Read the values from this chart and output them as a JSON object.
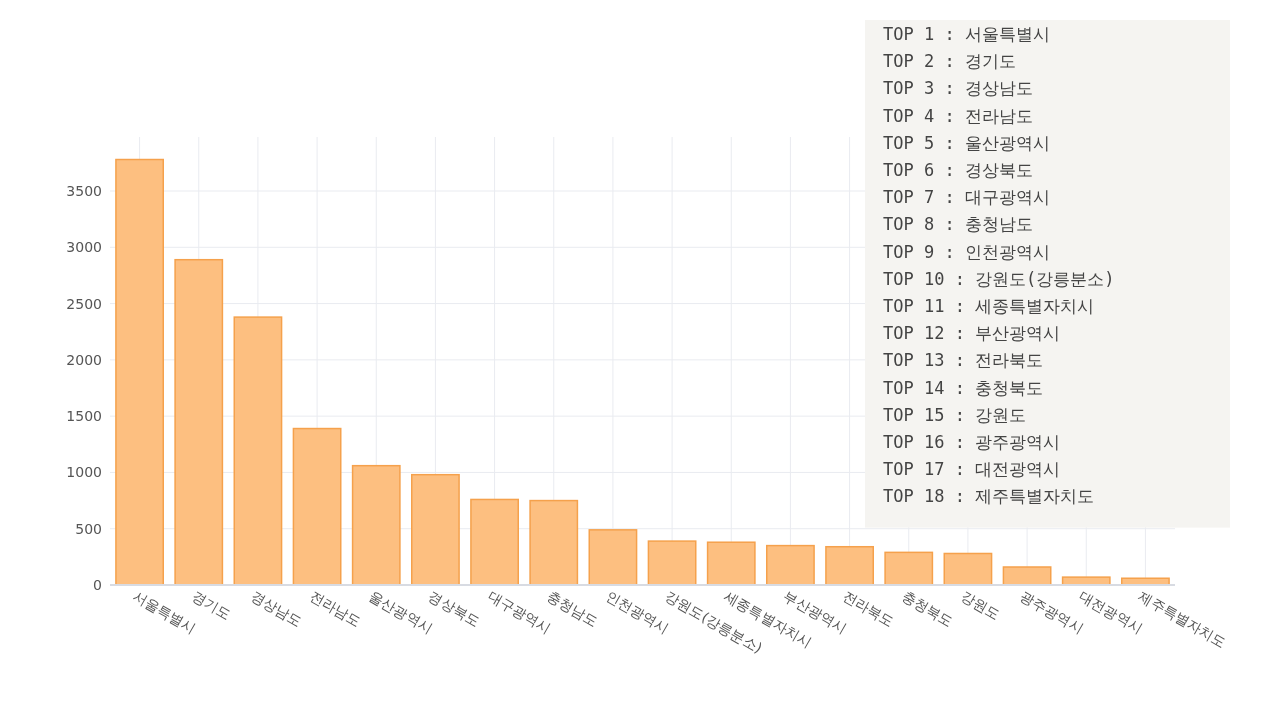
{
  "chart_data": {
    "type": "bar",
    "categories": [
      "서울특별시",
      "경기도",
      "경상남도",
      "전라남도",
      "울산광역시",
      "경상북도",
      "대구광역시",
      "충청남도",
      "인천광역시",
      "강원도(강릉분소)",
      "세종특별자치시",
      "부산광역시",
      "전라북도",
      "충청북도",
      "강원도",
      "광주광역시",
      "대전광역시",
      "제주특별자치도"
    ],
    "values": [
      3780,
      2890,
      2380,
      1390,
      1060,
      980,
      760,
      750,
      490,
      390,
      380,
      350,
      340,
      290,
      280,
      160,
      70,
      60
    ],
    "color": "#fdbf80",
    "ylim": [
      0,
      3980
    ],
    "yticks": [
      0,
      500,
      1000,
      1500,
      2000,
      2500,
      3000,
      3500
    ],
    "grid": true,
    "annotations": [
      "TOP 1 : 서울특별시",
      "TOP 2 : 경기도",
      "TOP 3 : 경상남도",
      "TOP 4 : 전라남도",
      "TOP 5 : 울산광역시",
      "TOP 6 : 경상북도",
      "TOP 7 : 대구광역시",
      "TOP 8 : 충청남도",
      "TOP 9 : 인천광역시",
      "TOP 10 : 강원도(강릉분소)",
      "TOP 11 : 세종특별자치시",
      "TOP 12 : 부산광역시",
      "TOP 13 : 전라북도",
      "TOP 14 : 충청북도",
      "TOP 15 : 강원도",
      "TOP 16 : 광주광역시",
      "TOP 17 : 대전광역시",
      "TOP 18 : 제주특별자치도"
    ]
  }
}
